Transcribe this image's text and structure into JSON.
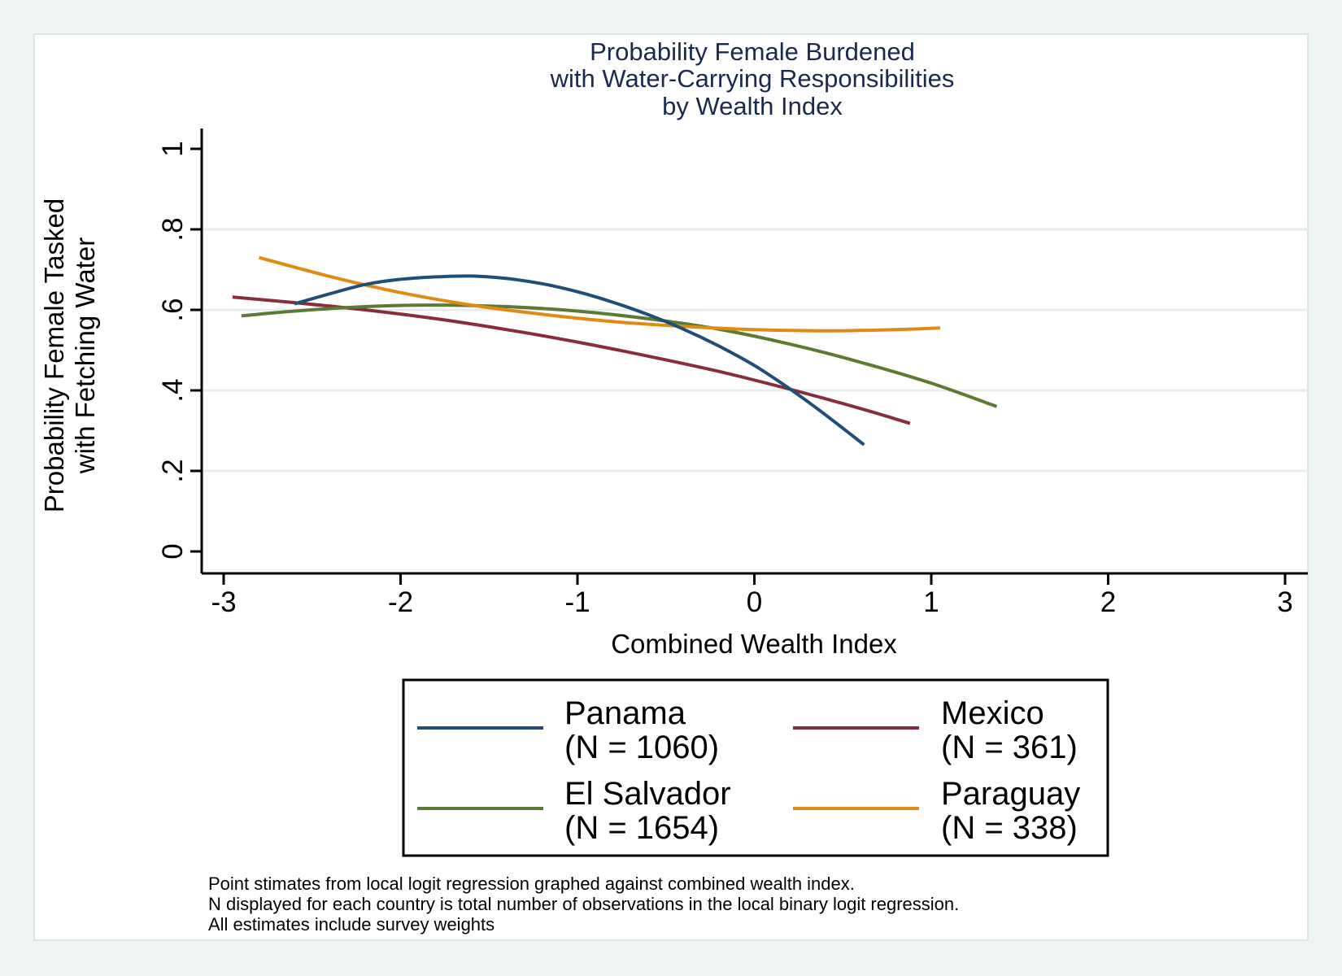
{
  "chart_data": {
    "type": "line",
    "title_lines": [
      "Probability Female Burdened",
      "with Water-Carrying Responsibilities",
      "by Wealth Index"
    ],
    "xlabel": "Combined Wealth Index",
    "ylabel_lines": [
      "Probability Female Tasked",
      "with Fetching Water"
    ],
    "xlim": [
      -3.1,
      3.1
    ],
    "ylim": [
      -0.055,
      1.05
    ],
    "x_ticks": [
      -3,
      -2,
      -1,
      0,
      1,
      2,
      3
    ],
    "x_tick_labels": [
      "-3",
      "-2",
      "-1",
      "0",
      "1",
      "2",
      "3"
    ],
    "y_ticks": [
      0,
      0.2,
      0.4,
      0.6,
      0.8,
      1
    ],
    "y_tick_labels": [
      "0",
      ".2",
      ".4",
      ".6",
      ".8",
      "1"
    ],
    "grid": true,
    "series": [
      {
        "name": "Panama",
        "n_label": "(N = 1060)",
        "color": "#1f4e79",
        "x": [
          -2.6,
          -2.4,
          -2.2,
          -2.0,
          -1.8,
          -1.6,
          -1.4,
          -1.2,
          -1.0,
          -0.8,
          -0.6,
          -0.4,
          -0.2,
          0.0,
          0.2,
          0.4,
          0.62
        ],
        "y": [
          0.615,
          0.64,
          0.663,
          0.676,
          0.682,
          0.684,
          0.678,
          0.665,
          0.645,
          0.619,
          0.588,
          0.552,
          0.51,
          0.462,
          0.404,
          0.34,
          0.265
        ]
      },
      {
        "name": "Mexico",
        "n_label": "(N = 361)",
        "color": "#8b2c3c",
        "x": [
          -2.95,
          -2.6,
          -2.2,
          -1.8,
          -1.4,
          -1.0,
          -0.6,
          -0.2,
          0.2,
          0.6,
          0.88
        ],
        "y": [
          0.632,
          0.618,
          0.6,
          0.578,
          0.551,
          0.52,
          0.485,
          0.447,
          0.403,
          0.355,
          0.318
        ]
      },
      {
        "name": "El Salvador",
        "n_label": "(N = 1654)",
        "color": "#5b7a32",
        "x": [
          -2.9,
          -2.6,
          -2.2,
          -1.8,
          -1.4,
          -1.0,
          -0.6,
          -0.2,
          0.2,
          0.6,
          1.0,
          1.37
        ],
        "y": [
          0.585,
          0.597,
          0.608,
          0.612,
          0.608,
          0.597,
          0.578,
          0.552,
          0.515,
          0.47,
          0.418,
          0.36
        ]
      },
      {
        "name": "Paraguay",
        "n_label": "(N = 338)",
        "color": "#e08a14",
        "x": [
          -2.8,
          -2.4,
          -2.0,
          -1.6,
          -1.2,
          -0.8,
          -0.4,
          0.0,
          0.4,
          0.8,
          1.05
        ],
        "y": [
          0.73,
          0.683,
          0.643,
          0.612,
          0.589,
          0.571,
          0.559,
          0.551,
          0.548,
          0.551,
          0.555
        ]
      }
    ],
    "legend_position": "bottom",
    "notes": [
      "Point stimates from local logit regression graphed against combined wealth index.",
      "N displayed for each country is total number of observations in the local binary logit regression.",
      "All estimates include survey weights"
    ]
  }
}
